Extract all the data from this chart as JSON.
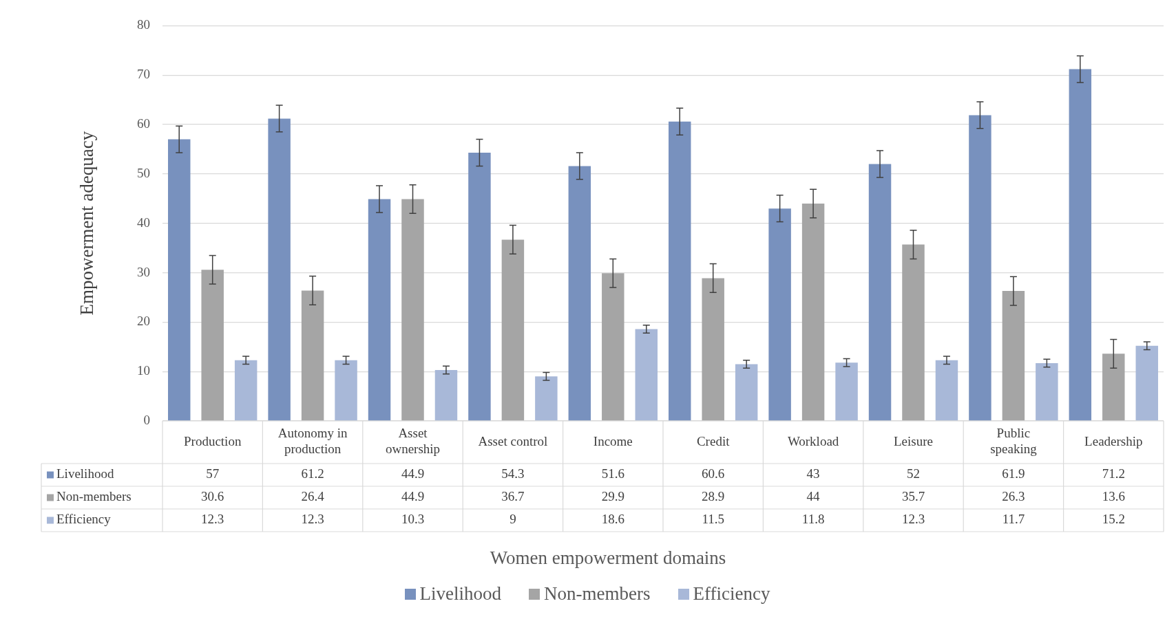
{
  "chart_data": {
    "type": "bar",
    "xlabel": "Women empowerment domains",
    "ylabel": "Empowerment adequacy",
    "categories": [
      "Production",
      "Autonomy in production",
      "Asset ownership",
      "Asset control",
      "Income",
      "Credit",
      "Workload",
      "Leisure",
      "Public speaking",
      "Leadership"
    ],
    "series": [
      {
        "name": "Livelihood",
        "color": "#7891be",
        "values": [
          57,
          61.2,
          44.9,
          54.3,
          51.6,
          60.6,
          43,
          52,
          61.9,
          71.2
        ],
        "errors": [
          2.7,
          2.7,
          2.7,
          2.7,
          2.7,
          2.7,
          2.7,
          2.7,
          2.7,
          2.7
        ]
      },
      {
        "name": "Non-members",
        "color": "#a5a5a5",
        "values": [
          30.6,
          26.4,
          44.9,
          36.7,
          29.9,
          28.9,
          44,
          35.7,
          26.3,
          13.6
        ],
        "errors": [
          2.9,
          2.9,
          2.9,
          2.9,
          2.9,
          2.9,
          2.9,
          2.9,
          2.9,
          2.9
        ]
      },
      {
        "name": "Efficiency",
        "color": "#a8b8d8",
        "values": [
          12.3,
          12.3,
          10.3,
          9,
          18.6,
          11.5,
          11.8,
          12.3,
          11.7,
          15.2
        ],
        "errors": [
          0.8,
          0.8,
          0.8,
          0.8,
          0.8,
          0.8,
          0.8,
          0.8,
          0.8,
          0.8
        ]
      }
    ],
    "ylim": [
      0,
      80
    ],
    "yticks": [
      0,
      10,
      20,
      30,
      40,
      50,
      60,
      70,
      80
    ],
    "grid": "y",
    "legend": "bottom",
    "data_labels": true
  }
}
